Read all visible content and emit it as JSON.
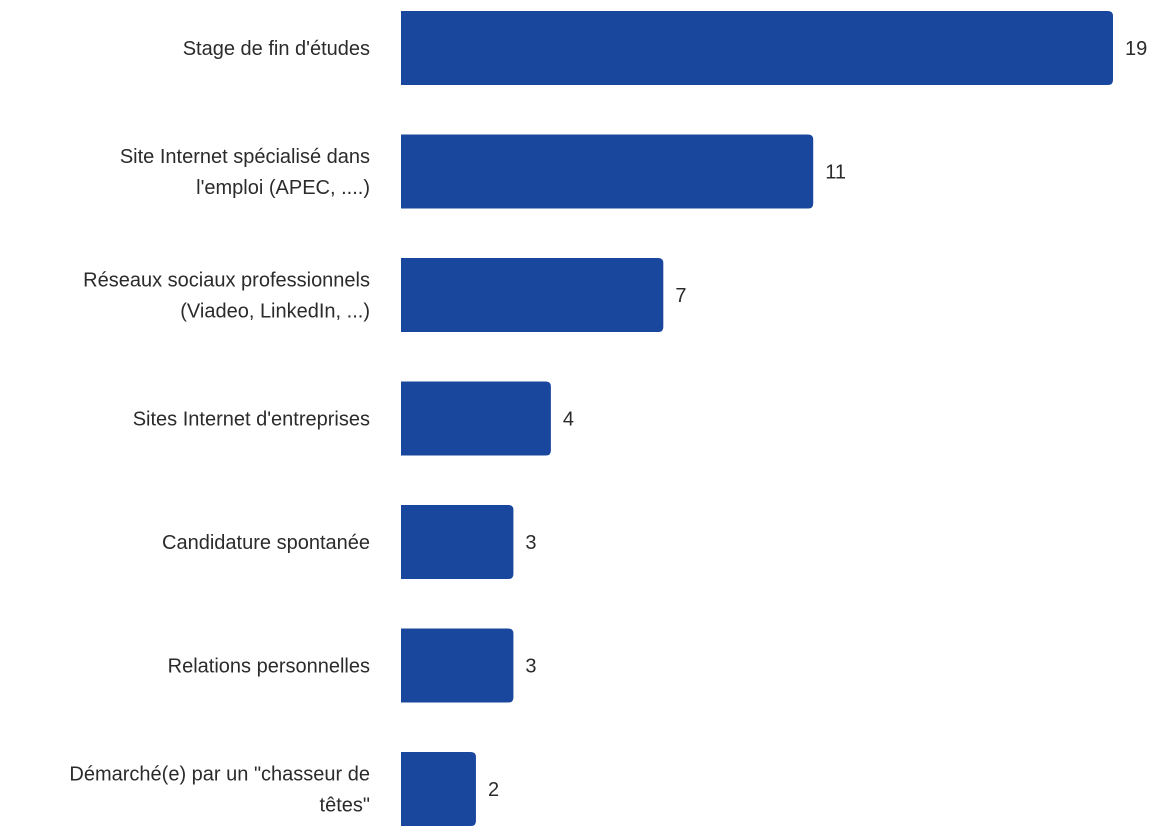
{
  "chart_data": {
    "type": "bar",
    "orientation": "horizontal",
    "categories": [
      [
        "Stage de fin d'études"
      ],
      [
        "Site Internet spécialisé dans",
        "l'emploi (APEC, ....)"
      ],
      [
        "Réseaux sociaux professionnels",
        "(Viadeo, LinkedIn, ...)"
      ],
      [
        "Sites Internet d'entreprises"
      ],
      [
        "Candidature spontanée"
      ],
      [
        "Relations personnelles"
      ],
      [
        "Démarché(e) par un \"chasseur de",
        "têtes\""
      ]
    ],
    "values": [
      19,
      11,
      7,
      4,
      3,
      3,
      2
    ],
    "value_labels": [
      "19",
      "11",
      "7",
      "4",
      "3",
      "3",
      "2"
    ],
    "xlim": [
      0,
      19
    ],
    "grid": false,
    "legend": "none",
    "bar_color": "#1a479e"
  }
}
